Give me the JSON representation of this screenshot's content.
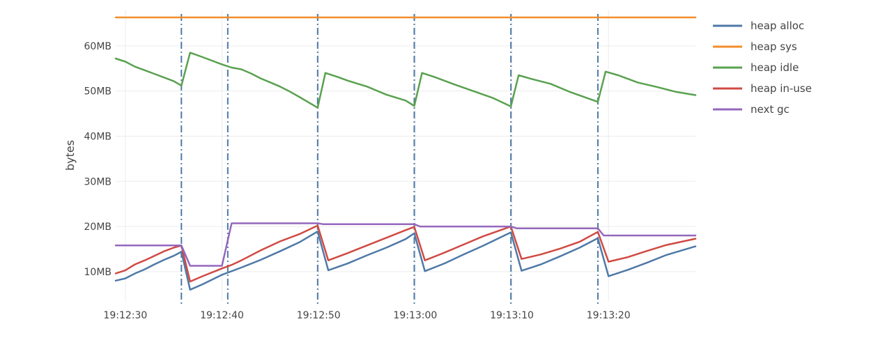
{
  "chart_data": {
    "type": "line",
    "title": "",
    "xlabel": "",
    "ylabel": "bytes",
    "x_ticks": [
      "19:12:30",
      "19:12:40",
      "19:12:50",
      "19:13:00",
      "19:13:10",
      "19:13:20"
    ],
    "y_ticks": [
      "10MB",
      "20MB",
      "30MB",
      "40MB",
      "50MB",
      "60MB"
    ],
    "xlim": [
      "19:12:29",
      "19:13:29"
    ],
    "ylim": [
      3.5,
      68
    ],
    "y_unit": "MB",
    "grid": true,
    "legend_position": "right",
    "series": [
      {
        "name": "heap alloc",
        "color": "#4e79a7",
        "points": [
          [
            "19:12:29",
            8
          ],
          [
            "19:12:30",
            8.5
          ],
          [
            "19:12:31",
            9.6
          ],
          [
            "19:12:32",
            10.5
          ],
          [
            "19:12:33",
            11.6
          ],
          [
            "19:12:34",
            12.6
          ],
          [
            "19:12:35",
            13.5
          ],
          [
            "19:12:35.8",
            14.4
          ],
          [
            "19:12:36.7",
            6
          ],
          [
            "19:12:38",
            7.2
          ],
          [
            "19:12:40",
            9.3
          ],
          [
            "19:12:42",
            10.9
          ],
          [
            "19:12:44",
            12.6
          ],
          [
            "19:12:46",
            14.5
          ],
          [
            "19:12:48",
            16.5
          ],
          [
            "19:12:49.9",
            18.9
          ],
          [
            "19:12:51",
            10.3
          ],
          [
            "19:12:53",
            11.8
          ],
          [
            "19:12:55",
            13.6
          ],
          [
            "19:12:57",
            15.3
          ],
          [
            "19:12:59",
            17.2
          ],
          [
            "19:12:59.9",
            18.5
          ],
          [
            "19:13:01",
            10.1
          ],
          [
            "19:13:03",
            11.8
          ],
          [
            "19:13:05",
            13.8
          ],
          [
            "19:13:07",
            15.7
          ],
          [
            "19:13:09.9",
            18.7
          ],
          [
            "19:13:11",
            10.2
          ],
          [
            "19:13:13",
            11.6
          ],
          [
            "19:13:15",
            13.4
          ],
          [
            "19:13:17",
            15.3
          ],
          [
            "19:13:18.9",
            17.4
          ],
          [
            "19:13:20",
            9
          ],
          [
            "19:13:22",
            10.4
          ],
          [
            "19:13:24",
            12
          ],
          [
            "19:13:26",
            13.7
          ],
          [
            "19:13:29",
            15.6
          ]
        ]
      },
      {
        "name": "heap sys",
        "color": "#f28e2b",
        "points": [
          [
            "19:12:29",
            66.3
          ],
          [
            "19:13:29",
            66.3
          ]
        ]
      },
      {
        "name": "heap idle",
        "color": "#59a14f",
        "points": [
          [
            "19:12:29",
            57.2
          ],
          [
            "19:12:30",
            56.5
          ],
          [
            "19:12:31",
            55.4
          ],
          [
            "19:12:32",
            54.6
          ],
          [
            "19:12:33",
            53.8
          ],
          [
            "19:12:34",
            53
          ],
          [
            "19:12:35",
            52.2
          ],
          [
            "19:12:35.8",
            51.2
          ],
          [
            "19:12:36.7",
            58.5
          ],
          [
            "19:12:38",
            57.5
          ],
          [
            "19:12:40",
            55.9
          ],
          [
            "19:12:41",
            55.2
          ],
          [
            "19:12:42",
            54.8
          ],
          [
            "19:12:43",
            53.9
          ],
          [
            "19:12:44",
            52.8
          ],
          [
            "19:12:45",
            51.9
          ],
          [
            "19:12:46",
            51
          ],
          [
            "19:12:47",
            49.9
          ],
          [
            "19:12:48",
            48.7
          ],
          [
            "19:12:49.9",
            46.3
          ],
          [
            "19:12:50.7",
            54
          ],
          [
            "19:12:52",
            53.1
          ],
          [
            "19:12:53",
            52.3
          ],
          [
            "19:12:55",
            51
          ],
          [
            "19:12:57",
            49.2
          ],
          [
            "19:12:59",
            47.9
          ],
          [
            "19:12:59.9",
            46.7
          ],
          [
            "19:13:00.7",
            54
          ],
          [
            "19:13:02",
            53.1
          ],
          [
            "19:13:04",
            51.5
          ],
          [
            "19:13:06",
            50
          ],
          [
            "19:13:08",
            48.5
          ],
          [
            "19:13:09.9",
            46.6
          ],
          [
            "19:13:10.7",
            53.5
          ],
          [
            "19:13:12",
            52.7
          ],
          [
            "19:13:14",
            51.6
          ],
          [
            "19:13:16",
            49.8
          ],
          [
            "19:13:18.9",
            47.6
          ],
          [
            "19:13:19.7",
            54.3
          ],
          [
            "19:13:21",
            53.5
          ],
          [
            "19:13:23",
            51.9
          ],
          [
            "19:13:25",
            50.9
          ],
          [
            "19:13:27",
            49.8
          ],
          [
            "19:13:29",
            49.1
          ]
        ]
      },
      {
        "name": "heap in-use",
        "color": "#d04a43",
        "points": [
          [
            "19:12:29",
            9.6
          ],
          [
            "19:12:30",
            10.3
          ],
          [
            "19:12:31",
            11.6
          ],
          [
            "19:12:32",
            12.5
          ],
          [
            "19:12:33",
            13.5
          ],
          [
            "19:12:34",
            14.5
          ],
          [
            "19:12:35",
            15.3
          ],
          [
            "19:12:35.8",
            15.8
          ],
          [
            "19:12:36.7",
            7.8
          ],
          [
            "19:12:38",
            9
          ],
          [
            "19:12:40",
            10.7
          ],
          [
            "19:12:41",
            11.5
          ],
          [
            "19:12:42",
            12.5
          ],
          [
            "19:12:44",
            14.7
          ],
          [
            "19:12:46",
            16.7
          ],
          [
            "19:12:48",
            18.3
          ],
          [
            "19:12:49.9",
            20.2
          ],
          [
            "19:12:51",
            12.5
          ],
          [
            "19:12:53",
            14.1
          ],
          [
            "19:12:55",
            15.8
          ],
          [
            "19:12:57",
            17.5
          ],
          [
            "19:12:59",
            19.2
          ],
          [
            "19:12:59.9",
            19.9
          ],
          [
            "19:13:01",
            12.5
          ],
          [
            "19:13:03",
            14.2
          ],
          [
            "19:13:05",
            16
          ],
          [
            "19:13:07",
            17.8
          ],
          [
            "19:13:09.9",
            20
          ],
          [
            "19:13:11",
            12.8
          ],
          [
            "19:13:13",
            13.8
          ],
          [
            "19:13:15",
            15.1
          ],
          [
            "19:13:17",
            16.6
          ],
          [
            "19:13:18.9",
            18.8
          ],
          [
            "19:13:20",
            12.2
          ],
          [
            "19:13:22",
            13.2
          ],
          [
            "19:13:24",
            14.6
          ],
          [
            "19:13:26",
            15.9
          ],
          [
            "19:13:29",
            17.3
          ]
        ]
      },
      {
        "name": "next gc",
        "color": "#9467bd",
        "points": [
          [
            "19:12:29",
            15.8
          ],
          [
            "19:12:35.8",
            15.8
          ],
          [
            "19:12:36.7",
            11.3
          ],
          [
            "19:12:40",
            11.3
          ],
          [
            "19:12:41",
            20.7
          ],
          [
            "19:12:49.9",
            20.7
          ],
          [
            "19:12:50.5",
            20.5
          ],
          [
            "19:12:59.9",
            20.5
          ],
          [
            "19:13:00.5",
            20
          ],
          [
            "19:13:09.9",
            20
          ],
          [
            "19:13:10.5",
            19.6
          ],
          [
            "19:13:18.9",
            19.6
          ],
          [
            "19:13:19.5",
            18
          ],
          [
            "19:13:29",
            18
          ]
        ]
      }
    ],
    "gc_markers": [
      "19:12:35.8",
      "19:12:40.6",
      "19:12:49.9",
      "19:12:59.9",
      "19:13:09.9",
      "19:13:18.9"
    ]
  }
}
